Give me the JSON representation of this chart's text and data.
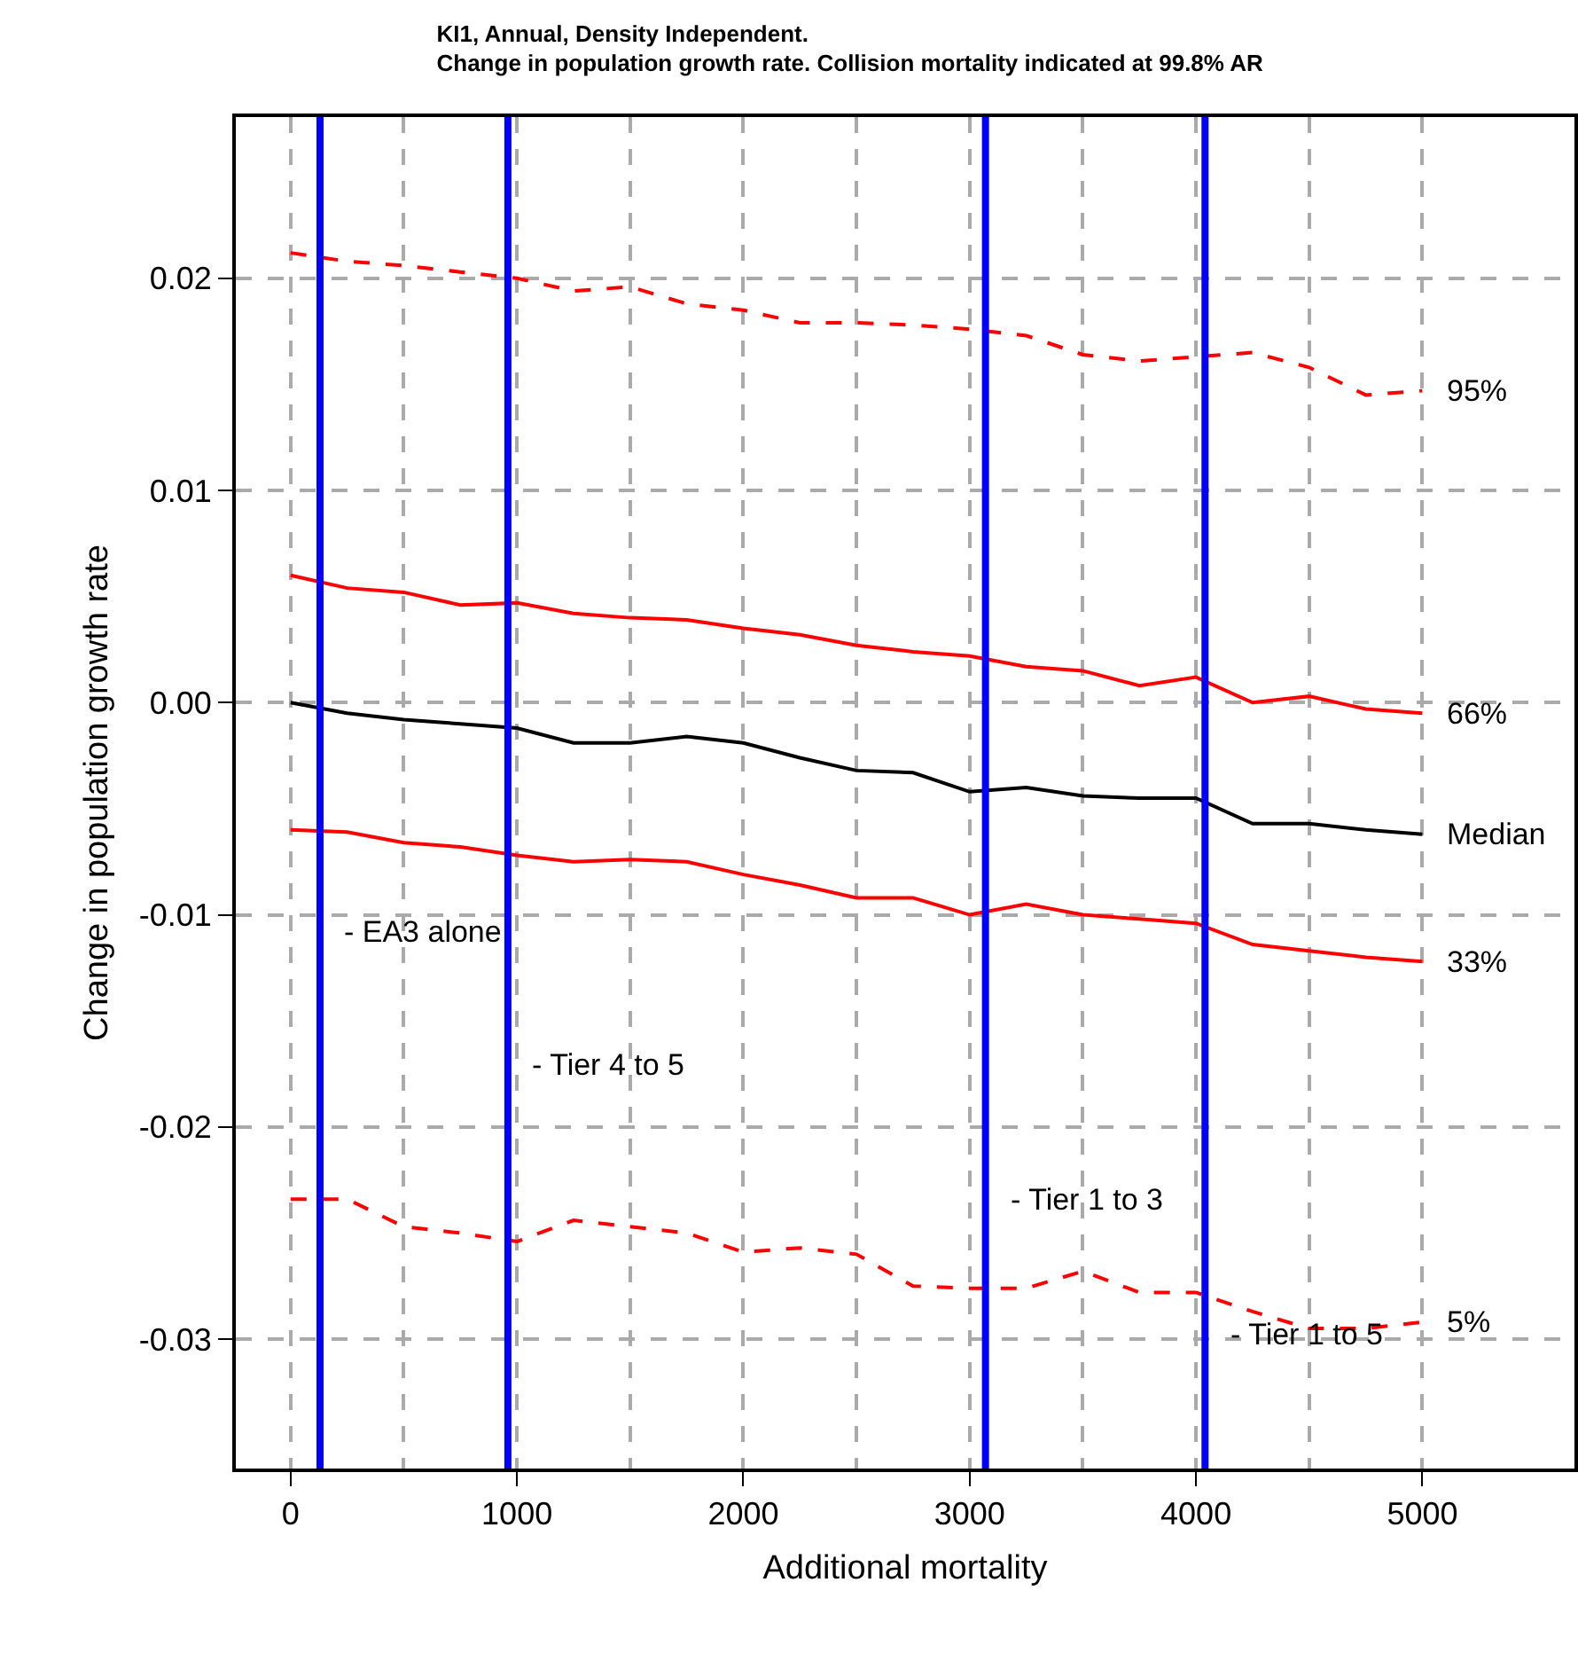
{
  "chart_data": {
    "type": "line",
    "title": "KI1, Annual, Density Independent.",
    "subtitle": "Change in population growth rate. Collision mortality indicated at 99.8% AR",
    "xlabel": "Additional mortality",
    "ylabel": "Change in population growth rate",
    "x": [
      0,
      250,
      500,
      750,
      1000,
      1250,
      1500,
      1750,
      2000,
      2250,
      2500,
      2750,
      3000,
      3250,
      3500,
      3750,
      4000,
      4250,
      4500,
      4750,
      5000
    ],
    "series": [
      {
        "name": "95%",
        "color": "#ff0000",
        "line_style": "dashed",
        "values": [
          0.0212,
          0.0208,
          0.0206,
          0.0203,
          0.02,
          0.0194,
          0.0196,
          0.0188,
          0.0185,
          0.0179,
          0.0179,
          0.0178,
          0.0176,
          0.0173,
          0.0164,
          0.0161,
          0.0163,
          0.0165,
          0.0158,
          0.0145,
          0.0147
        ]
      },
      {
        "name": "66%",
        "color": "#ff0000",
        "line_style": "solid",
        "values": [
          0.006,
          0.0054,
          0.0052,
          0.0046,
          0.0047,
          0.0042,
          0.004,
          0.0039,
          0.0035,
          0.0032,
          0.0027,
          0.0024,
          0.0022,
          0.0017,
          0.0015,
          0.0008,
          0.0012,
          0.0,
          0.0003,
          -0.0003,
          -0.0005
        ]
      },
      {
        "name": "Median",
        "color": "#000000",
        "line_style": "solid",
        "values": [
          0.0,
          -0.0005,
          -0.0008,
          -0.001,
          -0.0012,
          -0.0019,
          -0.0019,
          -0.0016,
          -0.0019,
          -0.0026,
          -0.0032,
          -0.0033,
          -0.0042,
          -0.004,
          -0.0044,
          -0.0045,
          -0.0045,
          -0.0057,
          -0.0057,
          -0.006,
          -0.0062
        ]
      },
      {
        "name": "33%",
        "color": "#ff0000",
        "line_style": "solid",
        "values": [
          -0.006,
          -0.0061,
          -0.0066,
          -0.0068,
          -0.0072,
          -0.0075,
          -0.0074,
          -0.0075,
          -0.0081,
          -0.0086,
          -0.0092,
          -0.0092,
          -0.01,
          -0.0095,
          -0.01,
          -0.0102,
          -0.0104,
          -0.0114,
          -0.0117,
          -0.012,
          -0.0122
        ]
      },
      {
        "name": "5%",
        "color": "#ff0000",
        "line_style": "dashed",
        "values": [
          -0.0234,
          -0.0234,
          -0.0247,
          -0.025,
          -0.0254,
          -0.0244,
          -0.0247,
          -0.025,
          -0.0259,
          -0.0257,
          -0.026,
          -0.0275,
          -0.0276,
          -0.0276,
          -0.0268,
          -0.0278,
          -0.0278,
          -0.0287,
          -0.0295,
          -0.0295,
          -0.0292
        ]
      }
    ],
    "xlim": [
      -242,
      5672
    ],
    "xticks": [
      0,
      {
        "value": 500,
        "label": null
      },
      1000,
      {
        "value": 1500,
        "label": null
      },
      2000,
      {
        "value": 2500,
        "label": null
      },
      3000,
      {
        "value": 3500,
        "label": null
      },
      4000,
      {
        "value": 4500,
        "label": null
      },
      5000
    ],
    "ylim": [
      -0.0361,
      0.0276
    ],
    "yticks": [
      -0.03,
      -0.02,
      -0.01,
      {
        "value": 0,
        "label": "0.00"
      },
      0.01,
      0.02
    ],
    "grid": true,
    "marker": "none",
    "ref_lines": [
      {
        "axis": "x",
        "value": 130,
        "color": "#0000ff"
      },
      {
        "axis": "x",
        "value": 960,
        "color": "#0000ff"
      },
      {
        "axis": "x",
        "value": 3070,
        "color": "#0000ff"
      },
      {
        "axis": "x",
        "value": 4040,
        "color": "#0000ff"
      }
    ],
    "annotations": [
      {
        "text": "- EA3 alone",
        "x": 130,
        "y": -0.0108
      },
      {
        "text": "- Tier 4 to 5",
        "x": 960,
        "y": -0.0171
      },
      {
        "text": "- Tier 1 to 3",
        "x": 3070,
        "y": -0.0234
      },
      {
        "text": "- Tier 1 to 5",
        "x": 4040,
        "y": -0.0298
      }
    ]
  }
}
